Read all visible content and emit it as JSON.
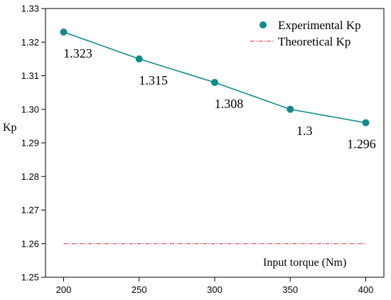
{
  "chart_data": {
    "type": "line",
    "title": "",
    "xlabel": "Input torque (Nm)",
    "ylabel": "Kp",
    "xlim": [
      188,
      412
    ],
    "ylim": [
      1.25,
      1.33
    ],
    "xticks": [
      200,
      250,
      300,
      350,
      400
    ],
    "xtick_labels": [
      "200",
      "250",
      "300",
      "350",
      "400"
    ],
    "yticks": [
      1.25,
      1.26,
      1.27,
      1.28,
      1.29,
      1.3,
      1.31,
      1.32,
      1.33
    ],
    "ytick_labels": [
      "1.25",
      "1.26",
      "1.27",
      "1.28",
      "1.29",
      "1.30",
      "1.31",
      "1.32",
      "1.33"
    ],
    "grid": false,
    "legend_position": "top-right",
    "series": [
      {
        "name": "Experimental Kp",
        "style": "line-with-markers",
        "color": "#138a8a",
        "x": [
          200,
          250,
          300,
          350,
          400
        ],
        "values": [
          1.323,
          1.315,
          1.308,
          1.3,
          1.296
        ],
        "data_labels": [
          "1.323",
          "1.315",
          "1.308",
          "1.3",
          "1.296"
        ]
      },
      {
        "name": "Theoretical Kp",
        "style": "dash-dot",
        "color": "#e8262b",
        "x": [
          200,
          400
        ],
        "values": [
          1.26,
          1.26
        ]
      }
    ]
  }
}
